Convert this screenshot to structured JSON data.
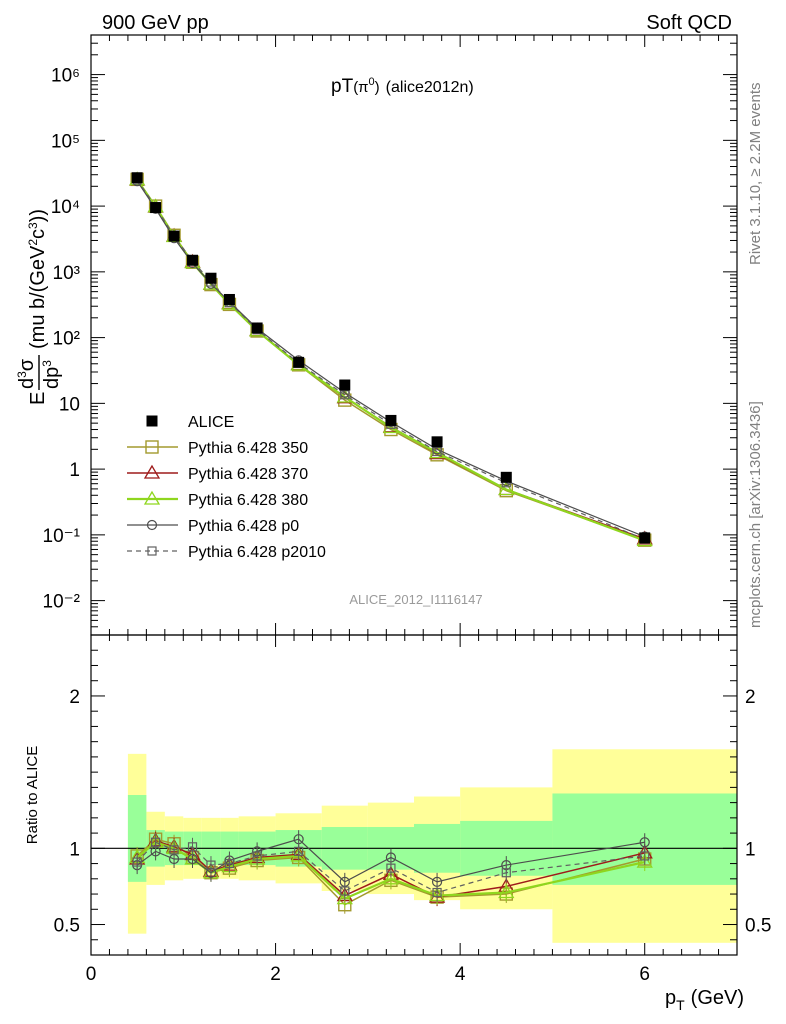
{
  "header": {
    "left": "900 GeV pp",
    "right": "Soft QCD"
  },
  "side": {
    "version": "Rivet 3.1.10, ≥ 2.2M events",
    "site": "mcplots.cern.ch [arXiv:1306.3436]"
  },
  "main_panel": {
    "title_main": "pT",
    "title_particle": "(π",
    "title_sup": "0",
    "title_close": ")",
    "title_tag": "(alice2012n)",
    "ylabel_pre": "E",
    "ylabel_num_d": "d",
    "ylabel_num_sup": "3",
    "ylabel_num_sigma": "σ",
    "ylabel_den_dp": "dp",
    "ylabel_den_sup": "3",
    "ylabel_units_a": "(mu b/(GeV",
    "ylabel_units_sup": "2",
    "ylabel_units_b": "c",
    "ylabel_units_sup2": "3",
    "ylabel_units_c": "))",
    "analysis_id": "ALICE_2012_I1116147"
  },
  "ratio_panel": {
    "ylabel": "Ratio to ALICE"
  },
  "xaxis": {
    "label_p": "p",
    "label_sub": "T",
    "label_unit": "(GeV)"
  },
  "colors": {
    "alice": "#000000",
    "p350": "#a39a2e",
    "p370": "#9e1b1b",
    "p380": "#8fd61e",
    "p0": "#4d4d4d",
    "p2010": "#606060",
    "band_inner": "#99ff99",
    "band_outer": "#ffff99"
  },
  "chart_data": [
    {
      "type": "scatter",
      "scale": "log",
      "xlim": [
        0,
        7.0
      ],
      "ylim": [
        0.003,
        4000000
      ],
      "x_ticks": [
        "0",
        "2",
        "4",
        "6"
      ],
      "y_ticks": [
        "10⁻²",
        "10⁻¹",
        "1",
        "10",
        "10²",
        "10³",
        "10⁴",
        "10⁵",
        "10⁶"
      ],
      "legend_position": "bottom-left",
      "x": [
        0.5,
        0.7,
        0.9,
        1.1,
        1.3,
        1.5,
        1.8,
        2.25,
        2.75,
        3.25,
        3.75,
        4.5,
        6.0
      ],
      "series": [
        {
          "name": "ALICE",
          "values": [
            27000,
            9500,
            3500,
            1500,
            800,
            380,
            140,
            42,
            19,
            5.5,
            2.6,
            0.75,
            0.09
          ]
        },
        {
          "name": "Pythia 6.428 350",
          "values": [
            25500,
            10000,
            3600,
            1400,
            640,
            320,
            126,
            38.5,
            11.2,
            4.0,
            1.65,
            0.47,
            0.083
          ]
        },
        {
          "name": "Pythia 6.428 370",
          "values": [
            25000,
            9700,
            3500,
            1410,
            650,
            330,
            128,
            39.0,
            12.2,
            4.4,
            1.72,
            0.49,
            0.087
          ]
        },
        {
          "name": "Pythia 6.428 380",
          "values": [
            25200,
            9800,
            3450,
            1380,
            650,
            325,
            127,
            38.5,
            12.5,
            4.3,
            1.78,
            0.49,
            0.082
          ]
        },
        {
          "name": "Pythia 6.428 p0",
          "values": [
            24000,
            9100,
            3250,
            1360,
            660,
            350,
            138,
            45.0,
            14.5,
            5.2,
            2.0,
            0.66,
            0.094
          ]
        },
        {
          "name": "Pythia 6.428 p2010",
          "values": [
            25000,
            9800,
            3450,
            1480,
            700,
            340,
            132,
            41.0,
            13.5,
            4.8,
            1.85,
            0.62,
            0.086
          ]
        }
      ]
    },
    {
      "type": "scatter",
      "title": "",
      "ylim": [
        0.3,
        2.4
      ],
      "y_ticks": [
        "0.5",
        "1",
        "2"
      ],
      "x": [
        0.5,
        0.7,
        0.9,
        1.1,
        1.3,
        1.5,
        1.8,
        2.25,
        2.75,
        3.25,
        3.75,
        4.5,
        6.0
      ],
      "bins": [
        [
          0.4,
          0.6
        ],
        [
          0.6,
          0.8
        ],
        [
          0.8,
          1.0
        ],
        [
          1.0,
          1.2
        ],
        [
          1.2,
          1.4
        ],
        [
          1.4,
          1.6
        ],
        [
          1.6,
          2.0
        ],
        [
          2.0,
          2.5
        ],
        [
          2.5,
          3.0
        ],
        [
          3.0,
          3.5
        ],
        [
          3.5,
          4.0
        ],
        [
          4.0,
          5.0
        ],
        [
          5.0,
          7.0
        ]
      ],
      "band_inner": [
        [
          0.78,
          1.35
        ],
        [
          0.88,
          1.12
        ],
        [
          0.89,
          1.11
        ],
        [
          0.89,
          1.11
        ],
        [
          0.89,
          1.11
        ],
        [
          0.89,
          1.11
        ],
        [
          0.89,
          1.11
        ],
        [
          0.88,
          1.12
        ],
        [
          0.86,
          1.14
        ],
        [
          0.86,
          1.14
        ],
        [
          0.84,
          1.16
        ],
        [
          0.82,
          1.18
        ],
        [
          0.76,
          1.36
        ]
      ],
      "band_outer": [
        [
          0.44,
          1.62
        ],
        [
          0.76,
          1.24
        ],
        [
          0.79,
          1.21
        ],
        [
          0.8,
          1.2
        ],
        [
          0.8,
          1.2
        ],
        [
          0.8,
          1.2
        ],
        [
          0.79,
          1.21
        ],
        [
          0.77,
          1.23
        ],
        [
          0.72,
          1.28
        ],
        [
          0.7,
          1.3
        ],
        [
          0.66,
          1.34
        ],
        [
          0.6,
          1.4
        ],
        [
          0.38,
          1.65
        ]
      ],
      "series": [
        {
          "name": "Pythia 6.428 350",
          "values": [
            0.95,
            1.06,
            1.03,
            0.94,
            0.84,
            0.87,
            0.92,
            0.94,
            0.63,
            0.79,
            0.68,
            0.7,
            0.93
          ]
        },
        {
          "name": "Pythia 6.428 370",
          "values": [
            0.93,
            1.05,
            1.01,
            0.96,
            0.85,
            0.89,
            0.94,
            0.96,
            0.69,
            0.83,
            0.68,
            0.75,
            0.97
          ]
        },
        {
          "name": "Pythia 6.428 380",
          "values": [
            0.94,
            1.04,
            1.0,
            0.93,
            0.84,
            0.88,
            0.93,
            0.95,
            0.67,
            0.8,
            0.69,
            0.71,
            0.91
          ]
        },
        {
          "name": "Pythia 6.428 p0",
          "values": [
            0.89,
            0.98,
            0.93,
            0.93,
            0.84,
            0.92,
            0.98,
            1.06,
            0.78,
            0.94,
            0.78,
            0.89,
            1.04
          ]
        },
        {
          "name": "Pythia 6.428 p2010",
          "values": [
            0.91,
            1.04,
            0.99,
            1.01,
            0.89,
            0.9,
            0.95,
            0.98,
            0.72,
            0.87,
            0.71,
            0.84,
            0.95
          ]
        }
      ]
    }
  ]
}
